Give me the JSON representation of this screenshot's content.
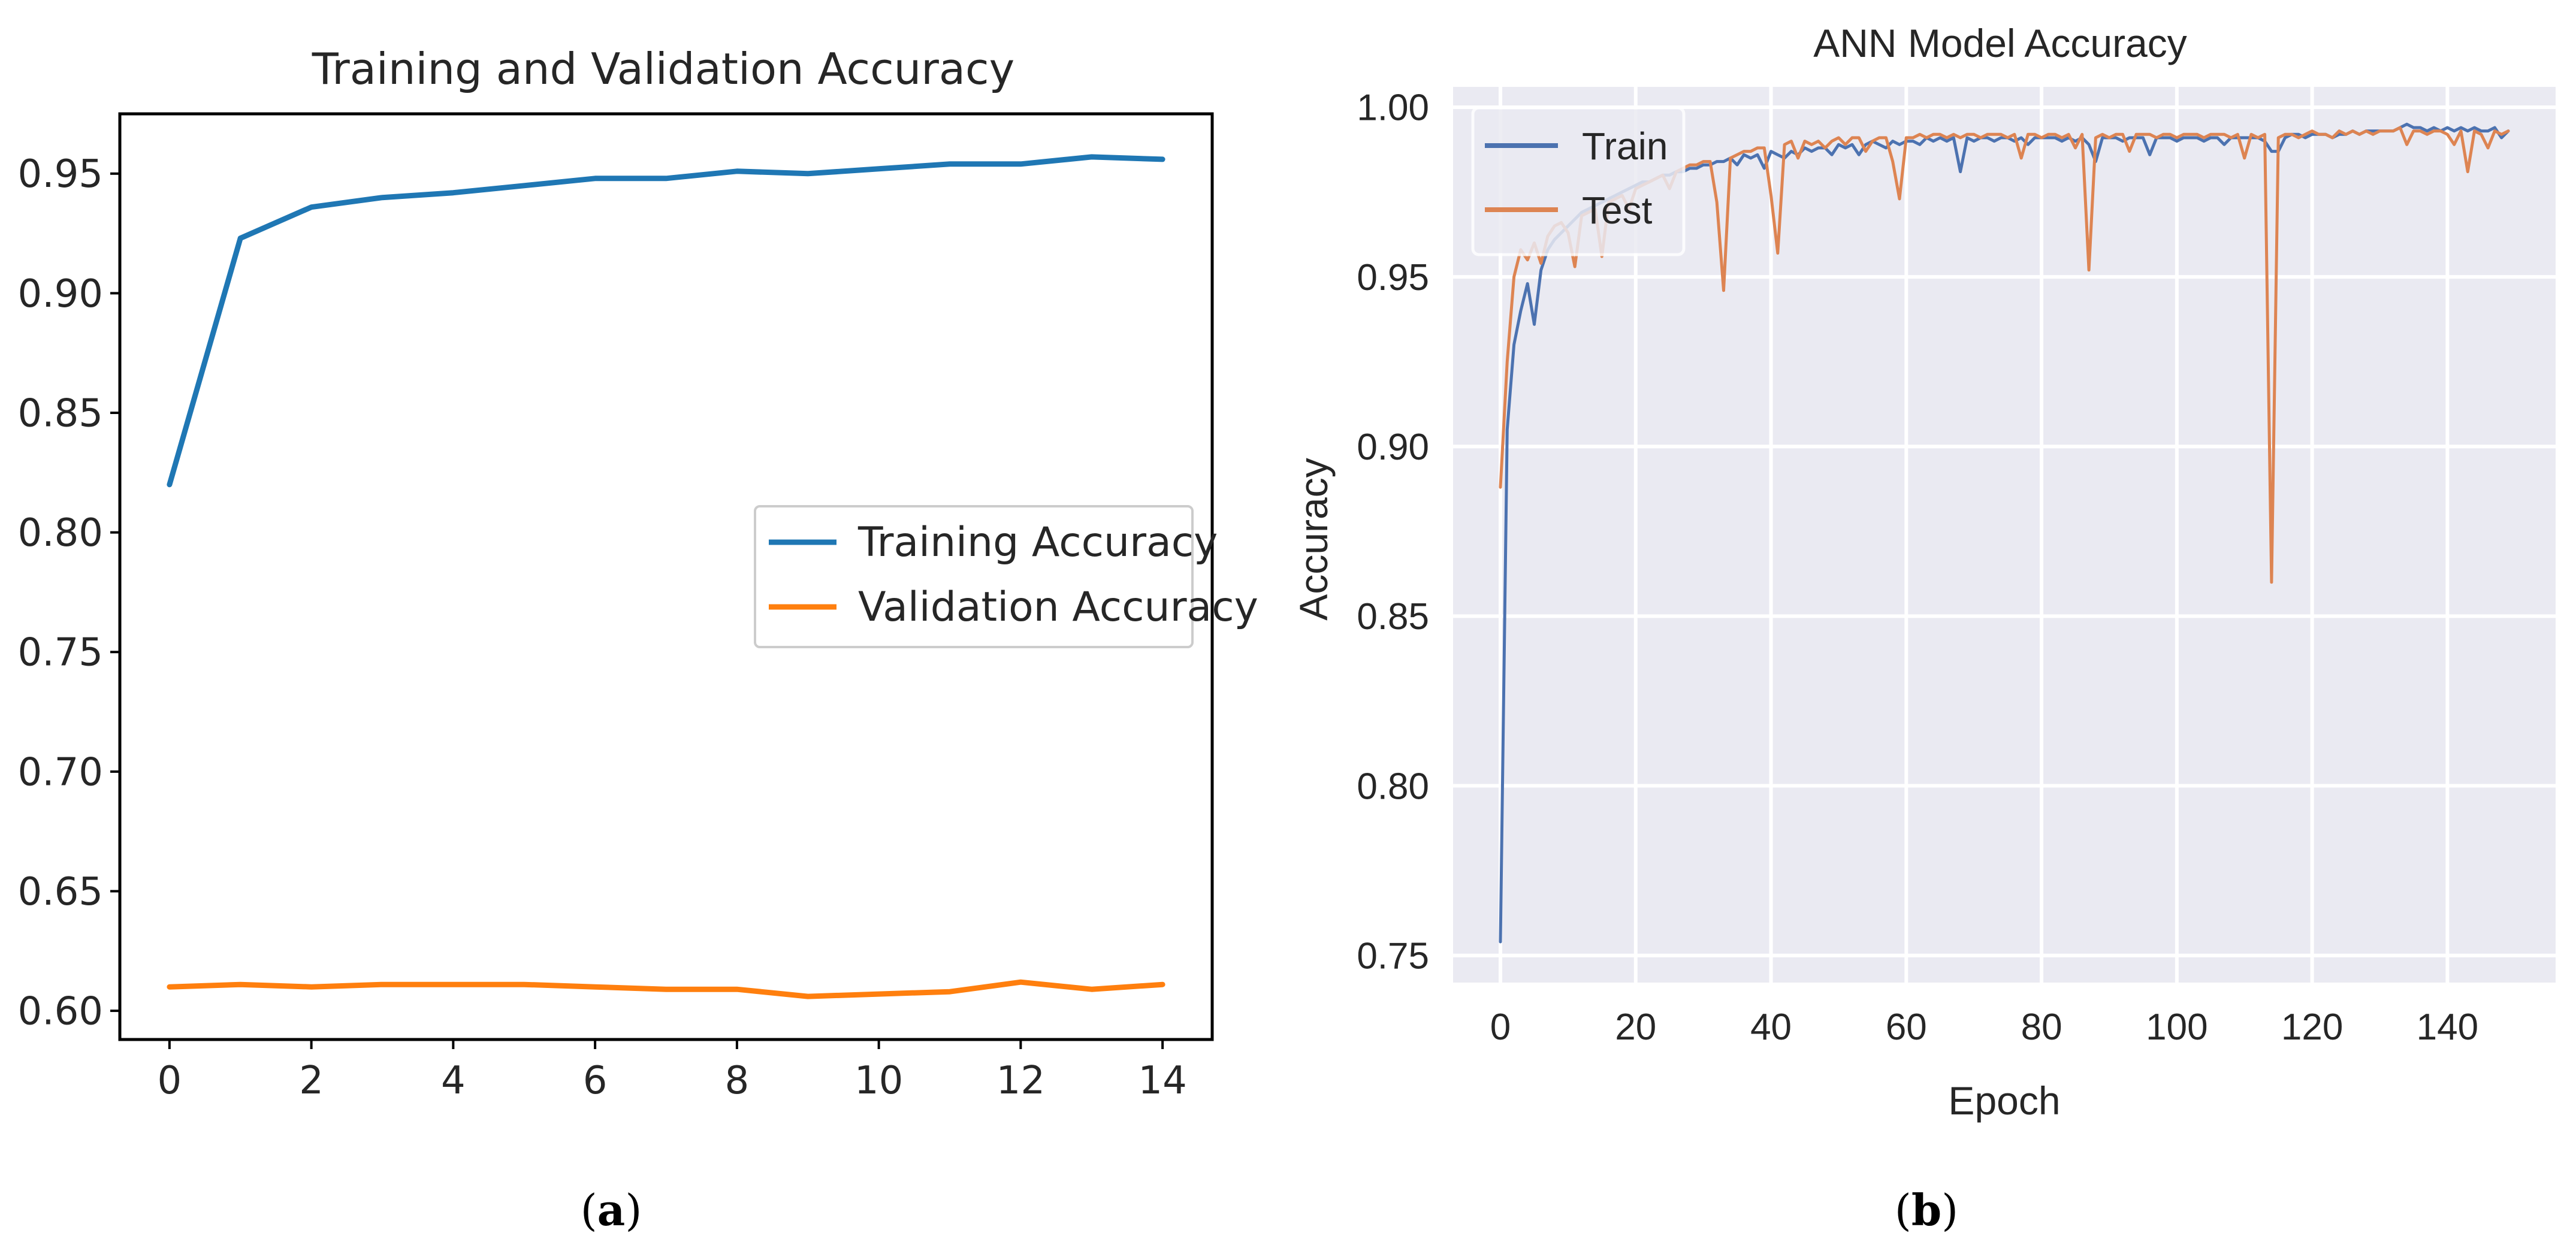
{
  "chart_data": [
    {
      "type": "line",
      "panel_label": "a",
      "title": "Training and Validation Accuracy",
      "xlabel": "",
      "ylabel": "",
      "xlim": [
        -0.7,
        14.7
      ],
      "ylim": [
        0.588,
        0.975
      ],
      "xticks": [
        0,
        2,
        4,
        6,
        8,
        10,
        12,
        14
      ],
      "yticks": [
        0.6,
        0.65,
        0.7,
        0.75,
        0.8,
        0.85,
        0.9,
        0.95
      ],
      "grid": false,
      "legend_position": "center-right",
      "x": [
        0,
        1,
        2,
        3,
        4,
        5,
        6,
        7,
        8,
        9,
        10,
        11,
        12,
        13,
        14
      ],
      "series": [
        {
          "name": "Training Accuracy",
          "color": "#1f77b4",
          "values": [
            0.82,
            0.923,
            0.936,
            0.94,
            0.942,
            0.945,
            0.948,
            0.948,
            0.951,
            0.95,
            0.952,
            0.954,
            0.954,
            0.957,
            0.956
          ]
        },
        {
          "name": "Validation Accuracy",
          "color": "#ff7f0e",
          "values": [
            0.61,
            0.611,
            0.61,
            0.611,
            0.611,
            0.611,
            0.61,
            0.609,
            0.609,
            0.606,
            0.607,
            0.608,
            0.612,
            0.609,
            0.611
          ]
        }
      ]
    },
    {
      "type": "line",
      "panel_label": "b",
      "title": "ANN Model Accuracy",
      "xlabel": "Epoch",
      "ylabel": "Accuracy",
      "xlim": [
        -7,
        156
      ],
      "ylim": [
        0.742,
        1.006
      ],
      "xticks": [
        0,
        20,
        40,
        60,
        80,
        100,
        120,
        140
      ],
      "yticks": [
        0.75,
        0.8,
        0.85,
        0.9,
        0.95,
        1.0
      ],
      "grid": true,
      "legend_position": "top-left",
      "x_start": 0,
      "x_step": 1,
      "series": [
        {
          "name": "Train",
          "color": "#4c72b0",
          "values": [
            0.754,
            0.905,
            0.93,
            0.94,
            0.948,
            0.936,
            0.952,
            0.958,
            0.961,
            0.963,
            0.965,
            0.967,
            0.969,
            0.97,
            0.971,
            0.972,
            0.973,
            0.974,
            0.975,
            0.976,
            0.977,
            0.978,
            0.978,
            0.979,
            0.98,
            0.98,
            0.981,
            0.981,
            0.982,
            0.982,
            0.983,
            0.983,
            0.984,
            0.984,
            0.985,
            0.983,
            0.986,
            0.985,
            0.986,
            0.982,
            0.987,
            0.986,
            0.985,
            0.987,
            0.986,
            0.988,
            0.987,
            0.988,
            0.988,
            0.986,
            0.989,
            0.988,
            0.989,
            0.986,
            0.989,
            0.99,
            0.989,
            0.988,
            0.99,
            0.989,
            0.99,
            0.99,
            0.989,
            0.991,
            0.99,
            0.991,
            0.99,
            0.991,
            0.981,
            0.991,
            0.99,
            0.991,
            0.991,
            0.99,
            0.991,
            0.991,
            0.99,
            0.991,
            0.989,
            0.991,
            0.991,
            0.991,
            0.991,
            0.99,
            0.991,
            0.99,
            0.991,
            0.989,
            0.984,
            0.991,
            0.991,
            0.991,
            0.99,
            0.991,
            0.991,
            0.991,
            0.986,
            0.991,
            0.991,
            0.991,
            0.99,
            0.991,
            0.991,
            0.991,
            0.99,
            0.991,
            0.991,
            0.989,
            0.991,
            0.991,
            0.991,
            0.991,
            0.991,
            0.99,
            0.987,
            0.987,
            0.991,
            0.992,
            0.992,
            0.991,
            0.992,
            0.992,
            0.992,
            0.991,
            0.992,
            0.992,
            0.993,
            0.992,
            0.993,
            0.993,
            0.993,
            0.993,
            0.993,
            0.994,
            0.995,
            0.994,
            0.994,
            0.993,
            0.994,
            0.993,
            0.994,
            0.993,
            0.994,
            0.993,
            0.994,
            0.993,
            0.993,
            0.994,
            0.991,
            0.993
          ]
        },
        {
          "name": "Test",
          "color": "#dd8452",
          "values": [
            0.888,
            0.925,
            0.95,
            0.958,
            0.955,
            0.96,
            0.954,
            0.962,
            0.965,
            0.966,
            0.963,
            0.953,
            0.968,
            0.969,
            0.97,
            0.956,
            0.972,
            0.973,
            0.974,
            0.97,
            0.976,
            0.977,
            0.978,
            0.979,
            0.98,
            0.976,
            0.981,
            0.982,
            0.983,
            0.983,
            0.984,
            0.984,
            0.972,
            0.946,
            0.985,
            0.986,
            0.987,
            0.987,
            0.988,
            0.988,
            0.974,
            0.957,
            0.989,
            0.99,
            0.985,
            0.99,
            0.989,
            0.99,
            0.988,
            0.99,
            0.991,
            0.989,
            0.991,
            0.991,
            0.987,
            0.99,
            0.991,
            0.991,
            0.984,
            0.973,
            0.991,
            0.991,
            0.992,
            0.991,
            0.992,
            0.992,
            0.991,
            0.992,
            0.991,
            0.992,
            0.992,
            0.991,
            0.992,
            0.992,
            0.992,
            0.991,
            0.992,
            0.985,
            0.992,
            0.992,
            0.991,
            0.992,
            0.992,
            0.991,
            0.992,
            0.988,
            0.992,
            0.952,
            0.991,
            0.992,
            0.991,
            0.992,
            0.992,
            0.987,
            0.992,
            0.992,
            0.992,
            0.991,
            0.992,
            0.992,
            0.991,
            0.992,
            0.992,
            0.992,
            0.991,
            0.992,
            0.992,
            0.992,
            0.991,
            0.992,
            0.985,
            0.992,
            0.991,
            0.992,
            0.86,
            0.991,
            0.992,
            0.992,
            0.991,
            0.992,
            0.993,
            0.992,
            0.992,
            0.991,
            0.993,
            0.992,
            0.993,
            0.992,
            0.993,
            0.992,
            0.993,
            0.993,
            0.993,
            0.994,
            0.989,
            0.993,
            0.993,
            0.992,
            0.993,
            0.993,
            0.992,
            0.989,
            0.993,
            0.981,
            0.993,
            0.992,
            0.988,
            0.993,
            0.992,
            0.993
          ]
        }
      ]
    }
  ]
}
